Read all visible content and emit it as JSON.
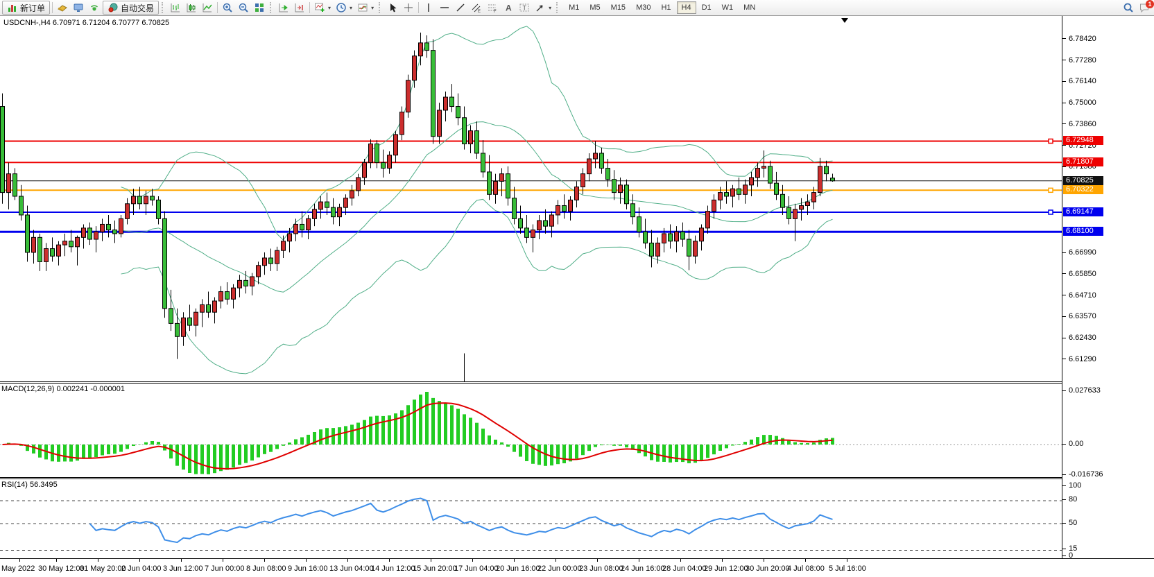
{
  "toolbar": {
    "new_order_label": "新订单",
    "auto_trading_label": "自动交易",
    "timeframes": [
      "M1",
      "M5",
      "M15",
      "M30",
      "H1",
      "H4",
      "D1",
      "W1",
      "MN"
    ],
    "active_timeframe": "H4",
    "notification_count": "1"
  },
  "chart": {
    "title": "USDCNH-,H4 6.70971 6.71204 6.70777 6.70825",
    "macd_label_full": "MACD(12,26,9) 0.002241 -0.000001",
    "rsi_label_full": "RSI(14) 56.3495"
  },
  "chart_data": {
    "type": "candlestick",
    "symbol": "USDCNH-",
    "timeframe": "H4",
    "ohlc_display": {
      "open": "6.70971",
      "high": "6.71204",
      "low": "6.70777",
      "close": "6.70825"
    },
    "candle_up_color": "#cc2e2e",
    "candle_down_color": "#38bd38",
    "bollinger": {
      "period": 20,
      "deviation": 2,
      "color": "#4fae87"
    },
    "price_ticks": [
      "6.78420",
      "6.77280",
      "6.76140",
      "6.75000",
      "6.73860",
      "6.72720",
      "6.71580",
      "6.66990",
      "6.65850",
      "6.64710",
      "6.63570",
      "6.62430",
      "6.61290"
    ],
    "hlines": [
      {
        "label": "6.72948",
        "color": "#ee0000",
        "width": 2,
        "anchor": true,
        "is_price": false
      },
      {
        "label": "6.71807",
        "color": "#ee0000",
        "width": 2,
        "anchor": false,
        "is_price": false
      },
      {
        "label": "6.70825",
        "color": "#111111",
        "width": 1,
        "anchor": false,
        "is_price": true
      },
      {
        "label": "6.70322",
        "color": "#ffa500",
        "width": 2,
        "anchor": true,
        "is_price": false
      },
      {
        "label": "6.69147",
        "color": "#0000ee",
        "width": 2,
        "anchor": true,
        "is_price": false
      },
      {
        "label": "6.68100",
        "color": "#0000ee",
        "width": 3,
        "anchor": false,
        "is_price": false
      }
    ],
    "vline": {
      "bar_index": 74,
      "from_price": 6.616
    },
    "macd": {
      "label": "MACD(12,26,9)",
      "values": "0.002241 -0.000001",
      "scale": [
        "0.027633",
        "0.00",
        "-0.016736"
      ],
      "hist_color": "#22cc22",
      "signal_color": "#e00000"
    },
    "rsi": {
      "label": "RSI(14)",
      "value": "56.3495",
      "levels": [
        80,
        50,
        15
      ],
      "scale": [
        "100",
        "80",
        "50",
        "15",
        "0"
      ],
      "line_color": "#3e8ee8"
    },
    "time_ticks": [
      "May 2022",
      "30 May 12:00",
      "31 May 20:00",
      "2 Jun 04:00",
      "3 Jun 12:00",
      "7 Jun 00:00",
      "8 Jun 08:00",
      "9 Jun 16:00",
      "13 Jun 04:00",
      "14 Jun 12:00",
      "15 Jun 20:00",
      "17 Jun 04:00",
      "20 Jun 16:00",
      "22 Jun 00:00",
      "23 Jun 08:00",
      "24 Jun 16:00",
      "28 Jun 04:00",
      "29 Jun 12:00",
      "30 Jun 20:00",
      "4 Jul 08:00",
      "5 Jul 16:00"
    ],
    "candles": [
      [
        6.748,
        6.755,
        6.696,
        6.702
      ],
      [
        6.702,
        6.718,
        6.693,
        6.712
      ],
      [
        6.712,
        6.715,
        6.698,
        6.7
      ],
      [
        6.7,
        6.706,
        6.687,
        6.69
      ],
      [
        6.69,
        6.695,
        6.665,
        6.67
      ],
      [
        6.67,
        6.682,
        6.664,
        6.678
      ],
      [
        6.678,
        6.68,
        6.66,
        6.665
      ],
      [
        6.665,
        6.675,
        6.66,
        6.672
      ],
      [
        6.672,
        6.678,
        6.665,
        6.668
      ],
      [
        6.668,
        6.676,
        6.663,
        6.674
      ],
      [
        6.674,
        6.68,
        6.668,
        6.676
      ],
      [
        6.676,
        6.682,
        6.67,
        6.673
      ],
      [
        6.673,
        6.679,
        6.663,
        6.678
      ],
      [
        6.678,
        6.685,
        6.672,
        6.683
      ],
      [
        6.683,
        6.686,
        6.674,
        6.677
      ],
      [
        6.677,
        6.684,
        6.67,
        6.681
      ],
      [
        6.681,
        6.688,
        6.676,
        6.685
      ],
      [
        6.685,
        6.69,
        6.678,
        6.682
      ],
      [
        6.682,
        6.687,
        6.675,
        6.68
      ],
      [
        6.68,
        6.69,
        6.678,
        6.688
      ],
      [
        6.688,
        6.699,
        6.685,
        6.696
      ],
      [
        6.696,
        6.704,
        6.69,
        6.7
      ],
      [
        6.7,
        6.705,
        6.693,
        6.696
      ],
      [
        6.696,
        6.703,
        6.69,
        6.7
      ],
      [
        6.7,
        6.704,
        6.695,
        6.698
      ],
      [
        6.698,
        6.7,
        6.685,
        6.688
      ],
      [
        6.688,
        6.692,
        6.635,
        6.64
      ],
      [
        6.64,
        6.65,
        6.628,
        6.632
      ],
      [
        6.632,
        6.64,
        6.613,
        6.625
      ],
      [
        6.625,
        6.638,
        6.62,
        6.635
      ],
      [
        6.635,
        6.642,
        6.628,
        6.631
      ],
      [
        6.631,
        6.64,
        6.625,
        6.638
      ],
      [
        6.638,
        6.645,
        6.63,
        6.642
      ],
      [
        6.642,
        6.649,
        6.635,
        6.638
      ],
      [
        6.638,
        6.646,
        6.632,
        6.644
      ],
      [
        6.644,
        6.652,
        6.64,
        6.649
      ],
      [
        6.649,
        6.654,
        6.642,
        6.645
      ],
      [
        6.645,
        6.653,
        6.64,
        6.651
      ],
      [
        6.651,
        6.658,
        6.646,
        6.655
      ],
      [
        6.655,
        6.66,
        6.648,
        6.652
      ],
      [
        6.652,
        6.659,
        6.647,
        6.657
      ],
      [
        6.657,
        6.665,
        6.653,
        6.663
      ],
      [
        6.663,
        6.67,
        6.658,
        6.667
      ],
      [
        6.667,
        6.672,
        6.66,
        6.664
      ],
      [
        6.664,
        6.673,
        6.66,
        6.671
      ],
      [
        6.671,
        6.679,
        6.667,
        6.676
      ],
      [
        6.676,
        6.683,
        6.67,
        6.68
      ],
      [
        6.68,
        6.688,
        6.676,
        6.685
      ],
      [
        6.685,
        6.692,
        6.678,
        6.682
      ],
      [
        6.682,
        6.69,
        6.677,
        6.688
      ],
      [
        6.688,
        6.696,
        6.684,
        6.693
      ],
      [
        6.693,
        6.7,
        6.688,
        6.697
      ],
      [
        6.697,
        6.702,
        6.69,
        6.694
      ],
      [
        6.694,
        6.699,
        6.685,
        6.689
      ],
      [
        6.689,
        6.696,
        6.684,
        6.694
      ],
      [
        6.694,
        6.701,
        6.69,
        6.699
      ],
      [
        6.699,
        6.706,
        6.695,
        6.703
      ],
      [
        6.703,
        6.712,
        6.7,
        6.71
      ],
      [
        6.71,
        6.72,
        6.706,
        6.718
      ],
      [
        6.718,
        6.7305,
        6.715,
        6.728
      ],
      [
        6.728,
        6.73,
        6.715,
        6.718
      ],
      [
        6.718,
        6.725,
        6.71,
        6.715
      ],
      [
        6.715,
        6.724,
        6.712,
        6.722
      ],
      [
        6.722,
        6.735,
        6.718,
        6.733
      ],
      [
        6.733,
        6.748,
        6.73,
        6.745
      ],
      [
        6.745,
        6.765,
        6.742,
        6.762
      ],
      [
        6.762,
        6.778,
        6.758,
        6.775
      ],
      [
        6.775,
        6.7875,
        6.77,
        6.782
      ],
      [
        6.782,
        6.786,
        6.774,
        6.778
      ],
      [
        6.778,
        6.784,
        6.728,
        6.732
      ],
      [
        6.732,
        6.75,
        6.728,
        6.746
      ],
      [
        6.746,
        6.756,
        6.74,
        6.753
      ],
      [
        6.753,
        6.76,
        6.745,
        6.748
      ],
      [
        6.748,
        6.755,
        6.738,
        6.742
      ],
      [
        6.742,
        6.748,
        6.725,
        6.728
      ],
      [
        6.728,
        6.738,
        6.723,
        6.735
      ],
      [
        6.735,
        6.74,
        6.72,
        6.723
      ],
      [
        6.723,
        6.73,
        6.71,
        6.713
      ],
      [
        6.713,
        6.722,
        6.698,
        6.701
      ],
      [
        6.701,
        6.712,
        6.696,
        6.708
      ],
      [
        6.708,
        6.715,
        6.7,
        6.712
      ],
      [
        6.712,
        6.716,
        6.695,
        6.699
      ],
      [
        6.699,
        6.705,
        6.685,
        6.688
      ],
      [
        6.688,
        6.695,
        6.68,
        6.683
      ],
      [
        6.683,
        6.69,
        6.675,
        6.678
      ],
      [
        6.678,
        6.685,
        6.67,
        6.682
      ],
      [
        6.682,
        6.69,
        6.677,
        6.687
      ],
      [
        6.687,
        6.693,
        6.68,
        6.684
      ],
      [
        6.684,
        6.692,
        6.678,
        6.69
      ],
      [
        6.69,
        6.698,
        6.685,
        6.695
      ],
      [
        6.695,
        6.701,
        6.688,
        6.692
      ],
      [
        6.692,
        6.7,
        6.687,
        6.698
      ],
      [
        6.698,
        6.708,
        6.694,
        6.705
      ],
      [
        6.705,
        6.715,
        6.701,
        6.712
      ],
      [
        6.712,
        6.723,
        6.708,
        6.72
      ],
      [
        6.72,
        6.7295,
        6.715,
        6.723
      ],
      [
        6.723,
        6.726,
        6.712,
        6.715
      ],
      [
        6.715,
        6.72,
        6.705,
        6.709
      ],
      [
        6.709,
        6.714,
        6.698,
        6.702
      ],
      [
        6.702,
        6.71,
        6.696,
        6.706
      ],
      [
        6.706,
        6.709,
        6.693,
        6.696
      ],
      [
        6.696,
        6.701,
        6.685,
        6.689
      ],
      [
        6.689,
        6.694,
        6.678,
        6.681
      ],
      [
        6.681,
        6.688,
        6.672,
        6.675
      ],
      [
        6.675,
        6.682,
        6.662,
        6.668
      ],
      [
        6.668,
        6.678,
        6.664,
        6.675
      ],
      [
        6.675,
        6.683,
        6.67,
        6.68
      ],
      [
        6.68,
        6.685,
        6.672,
        6.676
      ],
      [
        6.676,
        6.684,
        6.67,
        6.681
      ],
      [
        6.681,
        6.686,
        6.673,
        6.677
      ],
      [
        6.677,
        6.682,
        6.6605,
        6.668
      ],
      [
        6.668,
        6.679,
        6.664,
        6.676
      ],
      [
        6.676,
        6.685,
        6.671,
        6.683
      ],
      [
        6.683,
        6.695,
        6.68,
        6.692
      ],
      [
        6.692,
        6.701,
        6.688,
        6.698
      ],
      [
        6.698,
        6.705,
        6.693,
        6.702
      ],
      [
        6.702,
        6.708,
        6.696,
        6.7
      ],
      [
        6.7,
        6.706,
        6.694,
        6.704
      ],
      [
        6.704,
        6.71,
        6.698,
        6.701
      ],
      [
        6.701,
        6.709,
        6.696,
        6.706
      ],
      [
        6.706,
        6.713,
        6.7,
        6.71
      ],
      [
        6.71,
        6.718,
        6.705,
        6.715
      ],
      [
        6.715,
        6.7245,
        6.71,
        6.716
      ],
      [
        6.716,
        6.719,
        6.704,
        6.707
      ],
      [
        6.707,
        6.713,
        6.698,
        6.701
      ],
      [
        6.701,
        6.706,
        6.69,
        6.694
      ],
      [
        6.694,
        6.7,
        6.685,
        6.688
      ],
      [
        6.688,
        6.696,
        6.676,
        6.693
      ],
      [
        6.693,
        6.699,
        6.687,
        6.695
      ],
      [
        6.695,
        6.701,
        6.69,
        6.697
      ],
      [
        6.697,
        6.705,
        6.693,
        6.702
      ],
      [
        6.702,
        6.7205,
        6.7,
        6.716
      ],
      [
        6.716,
        6.719,
        6.708,
        6.712
      ],
      [
        6.70971,
        6.71204,
        6.70777,
        6.70825
      ]
    ]
  }
}
